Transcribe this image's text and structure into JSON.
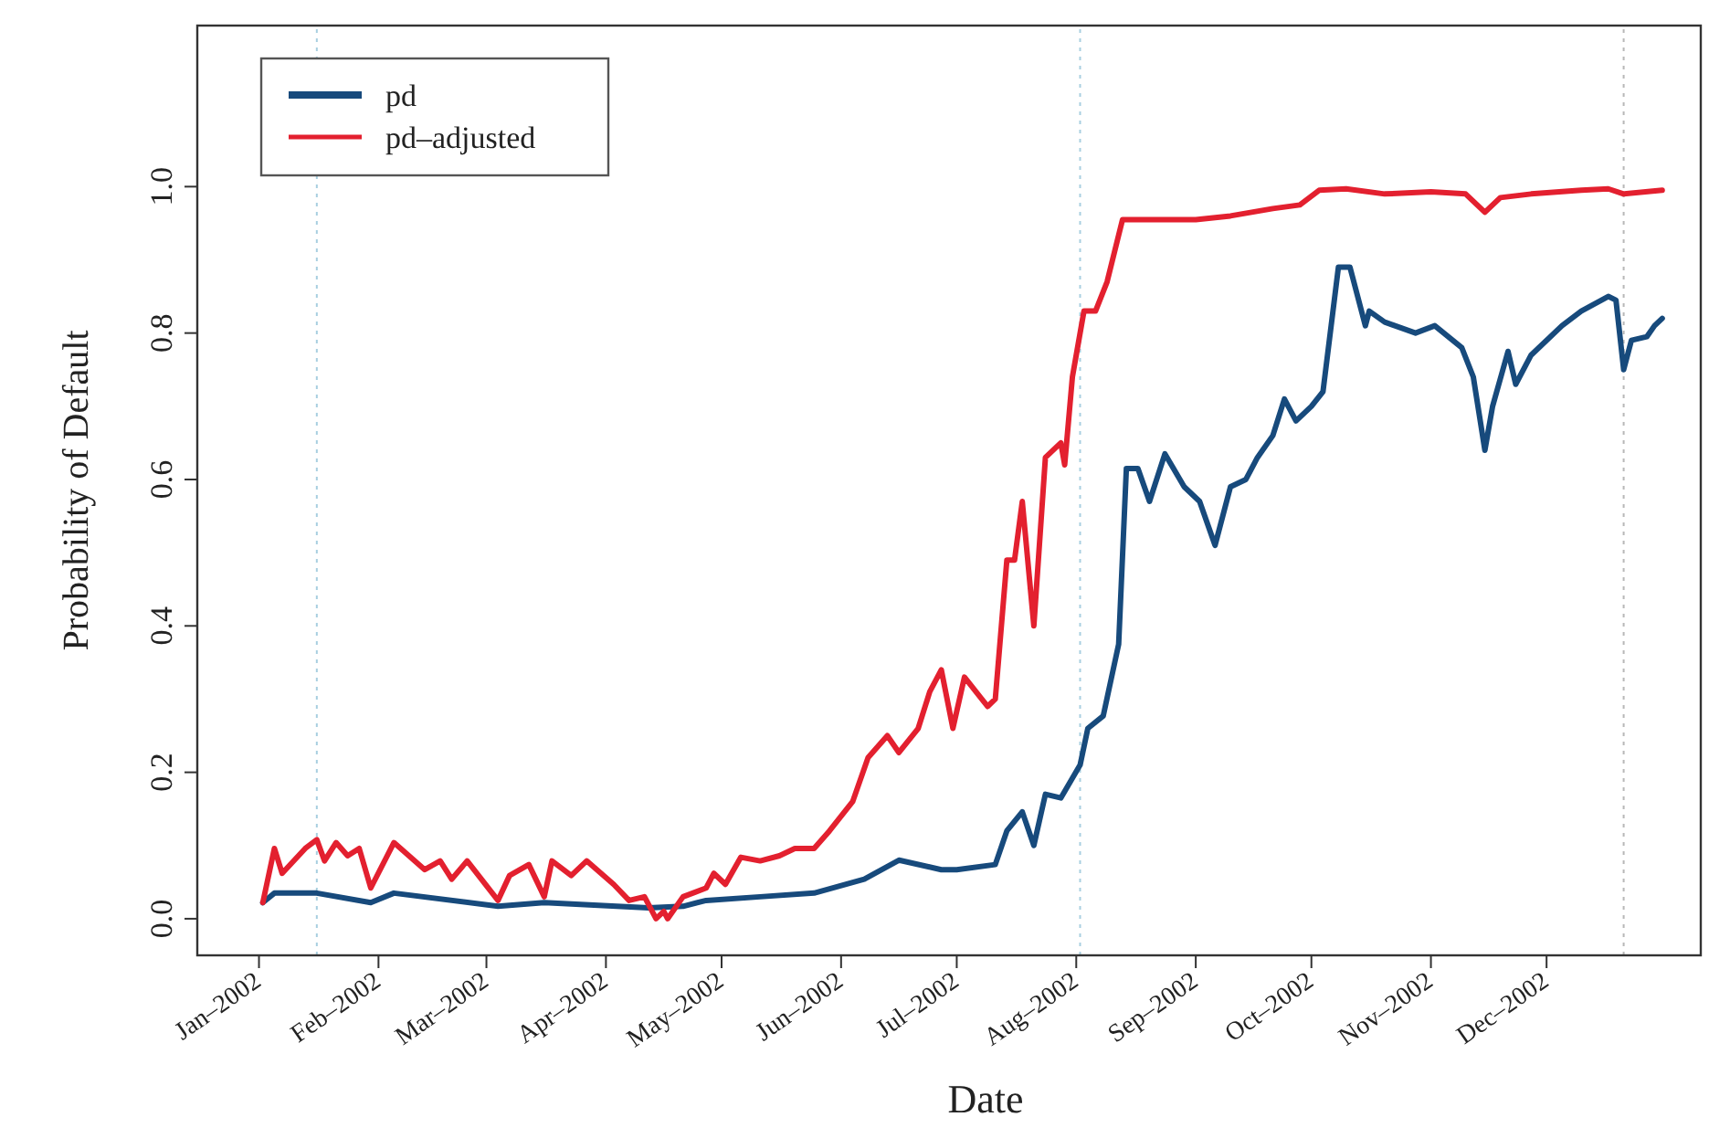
{
  "chart_data": {
    "type": "line",
    "xlabel": "Date",
    "ylabel": "Probability of Default",
    "xlim": [
      "2001-12-16",
      "2003-01-10"
    ],
    "ylim": [
      -0.05,
      1.22
    ],
    "xticks": [
      {
        "value": "2002-01-01",
        "label": "Jan–2002"
      },
      {
        "value": "2002-02-01",
        "label": "Feb–2002"
      },
      {
        "value": "2002-03-01",
        "label": "Mar–2002"
      },
      {
        "value": "2002-04-01",
        "label": "Apr–2002"
      },
      {
        "value": "2002-05-01",
        "label": "May–2002"
      },
      {
        "value": "2002-06-01",
        "label": "Jun–2002"
      },
      {
        "value": "2002-07-01",
        "label": "Jul–2002"
      },
      {
        "value": "2002-08-01",
        "label": "Aug–2002"
      },
      {
        "value": "2002-09-01",
        "label": "Sep–2002"
      },
      {
        "value": "2002-10-01",
        "label": "Oct–2002"
      },
      {
        "value": "2002-11-01",
        "label": "Nov–2002"
      },
      {
        "value": "2002-12-01",
        "label": "Dec–2002"
      }
    ],
    "yticks": [
      {
        "value": 0,
        "label": "0.0"
      },
      {
        "value": 0.2,
        "label": "0.2"
      },
      {
        "value": 0.4,
        "label": "0.4"
      },
      {
        "value": 0.6,
        "label": "0.6"
      },
      {
        "value": 0.8,
        "label": "0.8"
      },
      {
        "value": 1,
        "label": "1.0"
      }
    ],
    "grid": false,
    "legend": "top left",
    "line_style": "solid",
    "ref_lines": [
      {
        "axis": "x",
        "value": "2002-01-16",
        "label": null,
        "color": "#a8cfe0",
        "line_style": "dotted"
      },
      {
        "axis": "x",
        "value": "2002-08-02",
        "label": null,
        "color": "#a8cfe0",
        "line_style": "dotted"
      },
      {
        "axis": "x",
        "value": "2002-12-21",
        "label": null,
        "color": "#b8b8b8",
        "line_style": "dotted"
      }
    ],
    "series": [
      {
        "name": "pd",
        "color": "#174a7c",
        "x": [
          "2002-01-02",
          "2002-01-05",
          "2002-01-16",
          "2002-01-30",
          "2002-02-05",
          "2002-03-04",
          "2002-03-16",
          "2002-04-12",
          "2002-04-21",
          "2002-04-27",
          "2002-05-11",
          "2002-05-25",
          "2002-06-07",
          "2002-06-16",
          "2002-06-27",
          "2002-07-01",
          "2002-07-11",
          "2002-07-14",
          "2002-07-18",
          "2002-07-21",
          "2002-07-24",
          "2002-07-28",
          "2002-08-02",
          "2002-08-04",
          "2002-08-08",
          "2002-08-12",
          "2002-08-14",
          "2002-08-17",
          "2002-08-20",
          "2002-08-24",
          "2002-08-29",
          "2002-09-02",
          "2002-09-06",
          "2002-09-10",
          "2002-09-14",
          "2002-09-17",
          "2002-09-21",
          "2002-09-24",
          "2002-09-27",
          "2002-10-01",
          "2002-10-04",
          "2002-10-08",
          "2002-10-11",
          "2002-10-15",
          "2002-10-16",
          "2002-10-20",
          "2002-10-28",
          "2002-11-02",
          "2002-11-09",
          "2002-11-12",
          "2002-11-15",
          "2002-11-17",
          "2002-11-21",
          "2002-11-23",
          "2002-11-27",
          "2002-12-05",
          "2002-12-10",
          "2002-12-17",
          "2002-12-19",
          "2002-12-21",
          "2002-12-23",
          "2002-12-27",
          "2002-12-29",
          "2002-12-31"
        ],
        "values": [
          0.022,
          0.035,
          0.035,
          0.022,
          0.035,
          0.017,
          0.022,
          0.015,
          0.017,
          0.025,
          0.03,
          0.035,
          0.054,
          0.08,
          0.067,
          0.067,
          0.074,
          0.12,
          0.146,
          0.1,
          0.17,
          0.165,
          0.21,
          0.26,
          0.277,
          0.375,
          0.615,
          0.615,
          0.57,
          0.635,
          0.59,
          0.57,
          0.51,
          0.59,
          0.6,
          0.63,
          0.66,
          0.71,
          0.68,
          0.7,
          0.72,
          0.89,
          0.89,
          0.81,
          0.83,
          0.815,
          0.8,
          0.81,
          0.78,
          0.74,
          0.64,
          0.7,
          0.775,
          0.73,
          0.77,
          0.81,
          0.83,
          0.85,
          0.845,
          0.75,
          0.79,
          0.795,
          0.81,
          0.82
        ]
      },
      {
        "name": "pd–adjusted",
        "color": "#e3202f",
        "x": [
          "2002-01-02",
          "2002-01-05",
          "2002-01-07",
          "2002-01-13",
          "2002-01-16",
          "2002-01-18",
          "2002-01-21",
          "2002-01-24",
          "2002-01-27",
          "2002-01-30",
          "2002-02-05",
          "2002-02-13",
          "2002-02-17",
          "2002-02-20",
          "2002-02-24",
          "2002-03-04",
          "2002-03-07",
          "2002-03-12",
          "2002-03-16",
          "2002-03-18",
          "2002-03-23",
          "2002-03-27",
          "2002-04-03",
          "2002-04-07",
          "2002-04-11",
          "2002-04-14",
          "2002-04-16",
          "2002-04-17",
          "2002-04-21",
          "2002-04-27",
          "2002-04-29",
          "2002-05-02",
          "2002-05-06",
          "2002-05-11",
          "2002-05-16",
          "2002-05-20",
          "2002-05-25",
          "2002-05-29",
          "2002-06-04",
          "2002-06-08",
          "2002-06-13",
          "2002-06-16",
          "2002-06-21",
          "2002-06-24",
          "2002-06-27",
          "2002-06-30",
          "2002-07-03",
          "2002-07-09",
          "2002-07-11",
          "2002-07-14",
          "2002-07-16",
          "2002-07-18",
          "2002-07-21",
          "2002-07-24",
          "2002-07-28",
          "2002-07-29",
          "2002-07-31",
          "2002-08-03",
          "2002-08-06",
          "2002-08-09",
          "2002-08-13",
          "2002-08-24",
          "2002-09-01",
          "2002-09-10",
          "2002-09-21",
          "2002-09-28",
          "2002-10-03",
          "2002-10-10",
          "2002-10-20",
          "2002-11-01",
          "2002-11-10",
          "2002-11-15",
          "2002-11-19",
          "2002-11-27",
          "2002-12-10",
          "2002-12-17",
          "2002-12-21",
          "2002-12-31"
        ],
        "values": [
          0.022,
          0.096,
          0.062,
          0.096,
          0.108,
          0.079,
          0.104,
          0.086,
          0.096,
          0.042,
          0.104,
          0.067,
          0.079,
          0.054,
          0.079,
          0.025,
          0.059,
          0.074,
          0.03,
          0.079,
          0.059,
          0.079,
          0.047,
          0.025,
          0.03,
          0.0,
          0.01,
          0.0,
          0.03,
          0.042,
          0.062,
          0.047,
          0.084,
          0.079,
          0.086,
          0.096,
          0.096,
          0.12,
          0.16,
          0.22,
          0.25,
          0.227,
          0.26,
          0.31,
          0.34,
          0.26,
          0.33,
          0.29,
          0.3,
          0.49,
          0.49,
          0.57,
          0.4,
          0.63,
          0.65,
          0.62,
          0.74,
          0.83,
          0.83,
          0.87,
          0.955,
          0.955,
          0.955,
          0.96,
          0.97,
          0.975,
          0.995,
          0.997,
          0.99,
          0.993,
          0.99,
          0.965,
          0.985,
          0.99,
          0.995,
          0.997,
          0.99,
          0.995
        ]
      }
    ]
  }
}
